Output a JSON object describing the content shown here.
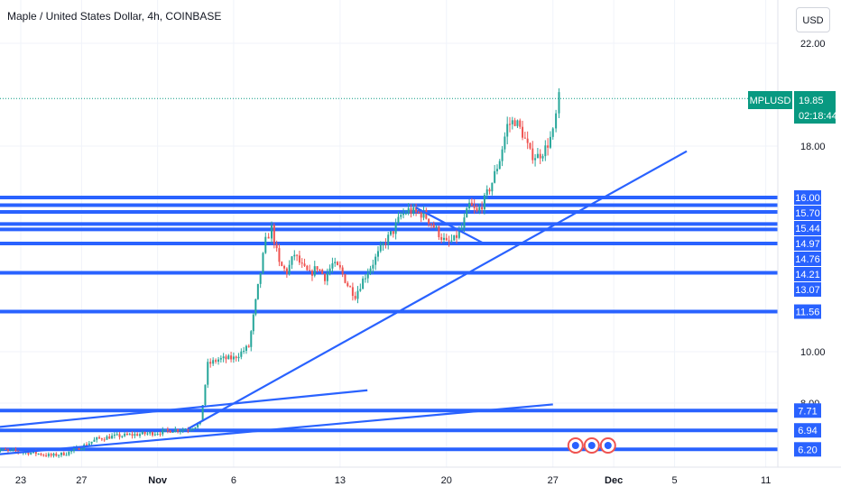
{
  "header": {
    "title": "Maple / United States Dollar, 4h, COINBASE",
    "currency_button": "USD"
  },
  "colors": {
    "up": "#26a69a",
    "down": "#ef5350",
    "level_line": "#2962ff",
    "price_tag": "#089981",
    "grid": "#f0f3fa"
  },
  "chart_data": {
    "type": "candlestick",
    "symbol_label": "MPLUSD",
    "last_price": "19.85",
    "countdown": "02:18:44",
    "y_axis_ticks": [
      {
        "value": 22,
        "label": "22.00"
      },
      {
        "value": 18,
        "label": "18.00"
      },
      {
        "value": 10,
        "label": "10.00"
      },
      {
        "value": 8,
        "label": "8.00"
      }
    ],
    "x_axis_ticks": [
      {
        "day": 23,
        "label": "23",
        "bold": false
      },
      {
        "day": 27,
        "label": "27",
        "bold": false
      },
      {
        "day": 32,
        "label": "Nov",
        "bold": true
      },
      {
        "day": 37,
        "label": "6",
        "bold": false
      },
      {
        "day": 44,
        "label": "13",
        "bold": false
      },
      {
        "day": 51,
        "label": "20",
        "bold": false
      },
      {
        "day": 58,
        "label": "27",
        "bold": false
      },
      {
        "day": 62,
        "label": "Dec",
        "bold": true
      },
      {
        "day": 66,
        "label": "5",
        "bold": false
      },
      {
        "day": 72,
        "label": "11",
        "bold": false
      }
    ],
    "levels": [
      {
        "value": 16.0,
        "label": "16.00"
      },
      {
        "value": 15.7,
        "label": "15.70"
      },
      {
        "value": 15.44,
        "label": "15.44"
      },
      {
        "value": 14.97,
        "label": "14.97"
      },
      {
        "value": 14.76,
        "label": "14.76"
      },
      {
        "value": 14.21,
        "label": "14.21"
      },
      {
        "value": 13.07,
        "label": "13.07"
      },
      {
        "value": 11.56,
        "label": "11.56"
      },
      {
        "value": 7.71,
        "label": "7.71"
      },
      {
        "value": 6.94,
        "label": "6.94"
      },
      {
        "value": 6.2,
        "label": "6.20"
      }
    ],
    "price_path": [
      {
        "day": 21.0,
        "price": 6.2
      },
      {
        "day": 22.0,
        "price": 6.15
      },
      {
        "day": 23.0,
        "price": 6.1
      },
      {
        "day": 24.0,
        "price": 6.05
      },
      {
        "day": 25.0,
        "price": 5.95
      },
      {
        "day": 26.0,
        "price": 6.05
      },
      {
        "day": 27.0,
        "price": 6.3
      },
      {
        "day": 28.0,
        "price": 6.6
      },
      {
        "day": 29.0,
        "price": 6.7
      },
      {
        "day": 30.0,
        "price": 6.75
      },
      {
        "day": 31.0,
        "price": 6.8
      },
      {
        "day": 32.0,
        "price": 6.85
      },
      {
        "day": 33.0,
        "price": 6.95
      },
      {
        "day": 34.0,
        "price": 7.0
      },
      {
        "day": 34.8,
        "price": 7.2
      },
      {
        "day": 35.3,
        "price": 9.5
      },
      {
        "day": 36.0,
        "price": 9.7
      },
      {
        "day": 37.0,
        "price": 9.75
      },
      {
        "day": 38.0,
        "price": 10.2
      },
      {
        "day": 38.6,
        "price": 12.5
      },
      {
        "day": 39.1,
        "price": 14.3
      },
      {
        "day": 39.5,
        "price": 14.8
      },
      {
        "day": 40.0,
        "price": 13.4
      },
      {
        "day": 40.5,
        "price": 13.1
      },
      {
        "day": 41.0,
        "price": 13.8
      },
      {
        "day": 41.5,
        "price": 13.3
      },
      {
        "day": 42.0,
        "price": 13.0
      },
      {
        "day": 42.5,
        "price": 13.3
      },
      {
        "day": 43.0,
        "price": 12.9
      },
      {
        "day": 43.5,
        "price": 13.4
      },
      {
        "day": 44.0,
        "price": 13.2
      },
      {
        "day": 44.5,
        "price": 12.6
      },
      {
        "day": 45.0,
        "price": 12.2
      },
      {
        "day": 45.5,
        "price": 12.8
      },
      {
        "day": 46.0,
        "price": 13.3
      },
      {
        "day": 46.5,
        "price": 13.8
      },
      {
        "day": 47.0,
        "price": 14.3
      },
      {
        "day": 47.5,
        "price": 14.7
      },
      {
        "day": 48.0,
        "price": 15.3
      },
      {
        "day": 48.5,
        "price": 15.5
      },
      {
        "day": 49.0,
        "price": 15.4
      },
      {
        "day": 49.5,
        "price": 15.35
      },
      {
        "day": 50.0,
        "price": 15.0
      },
      {
        "day": 50.5,
        "price": 14.6
      },
      {
        "day": 51.0,
        "price": 14.2
      },
      {
        "day": 51.5,
        "price": 14.35
      },
      {
        "day": 52.0,
        "price": 14.8
      },
      {
        "day": 52.5,
        "price": 15.7
      },
      {
        "day": 53.0,
        "price": 15.4
      },
      {
        "day": 53.5,
        "price": 15.9
      },
      {
        "day": 54.0,
        "price": 16.6
      },
      {
        "day": 54.5,
        "price": 17.5
      },
      {
        "day": 55.0,
        "price": 18.8
      },
      {
        "day": 55.5,
        "price": 19.0
      },
      {
        "day": 56.0,
        "price": 18.5
      },
      {
        "day": 56.5,
        "price": 17.7
      },
      {
        "day": 57.0,
        "price": 17.6
      },
      {
        "day": 57.5,
        "price": 17.9
      },
      {
        "day": 58.0,
        "price": 18.5
      },
      {
        "day": 58.4,
        "price": 19.85
      }
    ],
    "trendlines": [
      {
        "from": {
          "day": 34.0,
          "price": 7.0
        },
        "to": {
          "day": 66.8,
          "price": 17.8
        }
      },
      {
        "from": {
          "day": 19.5,
          "price": 6.95
        },
        "to": {
          "day": 45.8,
          "price": 8.5
        }
      },
      {
        "from": {
          "day": 19.5,
          "price": 5.9
        },
        "to": {
          "day": 58.0,
          "price": 7.95
        }
      },
      {
        "from": {
          "day": 49.0,
          "price": 15.6
        },
        "to": {
          "day": 53.5,
          "price": 14.2
        }
      }
    ]
  }
}
